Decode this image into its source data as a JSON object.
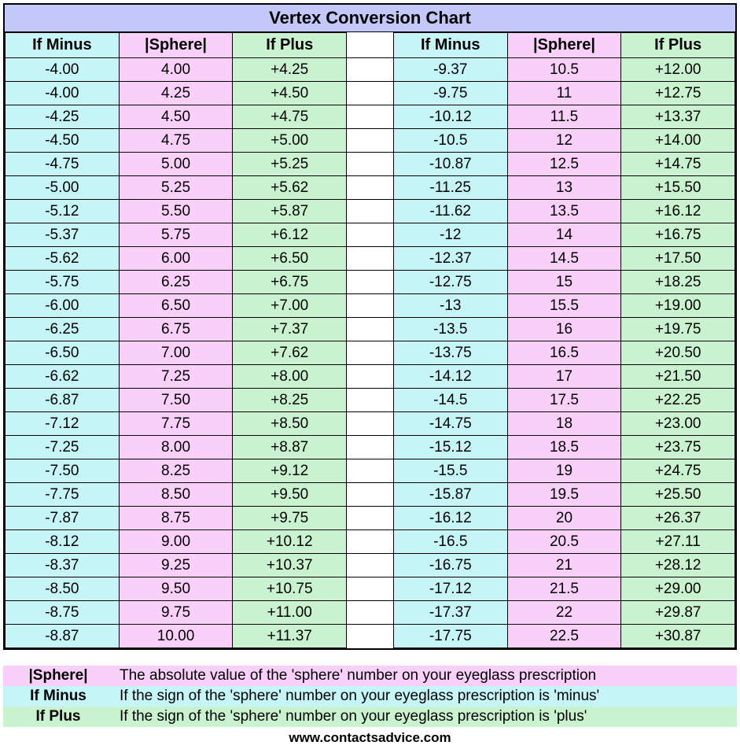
{
  "title": "Vertex Conversion Chart",
  "styling": {
    "title_bg": "#c4c8f8",
    "minus_bg": "#c5f5f7",
    "sphere_bg": "#f9d0f9",
    "plus_bg": "#c9f2cf",
    "border_color": "#000000",
    "font_family": "Arial",
    "title_fontsize": 22,
    "header_fontsize": 20,
    "cell_fontsize": 19,
    "legend_fontsize": 19,
    "url_fontsize": 17
  },
  "columns": {
    "minus": "If Minus",
    "sphere": "|Sphere|",
    "plus": "If Plus"
  },
  "left_rows": [
    {
      "minus": "-4.00",
      "sphere": "4.00",
      "plus": "+4.25"
    },
    {
      "minus": "-4.00",
      "sphere": "4.25",
      "plus": "+4.50"
    },
    {
      "minus": "-4.25",
      "sphere": "4.50",
      "plus": "+4.75"
    },
    {
      "minus": "-4.50",
      "sphere": "4.75",
      "plus": "+5.00"
    },
    {
      "minus": "-4.75",
      "sphere": "5.00",
      "plus": "+5.25"
    },
    {
      "minus": "-5.00",
      "sphere": "5.25",
      "plus": "+5.62"
    },
    {
      "minus": "-5.12",
      "sphere": "5.50",
      "plus": "+5.87"
    },
    {
      "minus": "-5.37",
      "sphere": "5.75",
      "plus": "+6.12"
    },
    {
      "minus": "-5.62",
      "sphere": "6.00",
      "plus": "+6.50"
    },
    {
      "minus": "-5.75",
      "sphere": "6.25",
      "plus": "+6.75"
    },
    {
      "minus": "-6.00",
      "sphere": "6.50",
      "plus": "+7.00"
    },
    {
      "minus": "-6.25",
      "sphere": "6.75",
      "plus": "+7.37"
    },
    {
      "minus": "-6.50",
      "sphere": "7.00",
      "plus": "+7.62"
    },
    {
      "minus": "-6.62",
      "sphere": "7.25",
      "plus": "+8.00"
    },
    {
      "minus": "-6.87",
      "sphere": "7.50",
      "plus": "+8.25"
    },
    {
      "minus": "-7.12",
      "sphere": "7.75",
      "plus": "+8.50"
    },
    {
      "minus": "-7.25",
      "sphere": "8.00",
      "plus": "+8.87"
    },
    {
      "minus": "-7.50",
      "sphere": "8.25",
      "plus": "+9.12"
    },
    {
      "minus": "-7.75",
      "sphere": "8.50",
      "plus": "+9.50"
    },
    {
      "minus": "-7.87",
      "sphere": "8.75",
      "plus": "+9.75"
    },
    {
      "minus": "-8.12",
      "sphere": "9.00",
      "plus": "+10.12"
    },
    {
      "minus": "-8.37",
      "sphere": "9.25",
      "plus": "+10.37"
    },
    {
      "minus": "-8.50",
      "sphere": "9.50",
      "plus": "+10.75"
    },
    {
      "minus": "-8.75",
      "sphere": "9.75",
      "plus": "+11.00"
    },
    {
      "minus": "-8.87",
      "sphere": "10.00",
      "plus": "+11.37"
    }
  ],
  "right_rows": [
    {
      "minus": "-9.37",
      "sphere": "10.5",
      "plus": "+12.00"
    },
    {
      "minus": "-9.75",
      "sphere": "11",
      "plus": "+12.75"
    },
    {
      "minus": "-10.12",
      "sphere": "11.5",
      "plus": "+13.37"
    },
    {
      "minus": "-10.5",
      "sphere": "12",
      "plus": "+14.00"
    },
    {
      "minus": "-10.87",
      "sphere": "12.5",
      "plus": "+14.75"
    },
    {
      "minus": "-11.25",
      "sphere": "13",
      "plus": "+15.50"
    },
    {
      "minus": "-11.62",
      "sphere": "13.5",
      "plus": "+16.12"
    },
    {
      "minus": "-12",
      "sphere": "14",
      "plus": "+16.75"
    },
    {
      "minus": "-12.37",
      "sphere": "14.5",
      "plus": "+17.50"
    },
    {
      "minus": "-12.75",
      "sphere": "15",
      "plus": "+18.25"
    },
    {
      "minus": "-13",
      "sphere": "15.5",
      "plus": "+19.00"
    },
    {
      "minus": "-13.5",
      "sphere": "16",
      "plus": "+19.75"
    },
    {
      "minus": "-13.75",
      "sphere": "16.5",
      "plus": "+20.50"
    },
    {
      "minus": "-14.12",
      "sphere": "17",
      "plus": "+21.50"
    },
    {
      "minus": "-14.5",
      "sphere": "17.5",
      "plus": "+22.25"
    },
    {
      "minus": "-14.75",
      "sphere": "18",
      "plus": "+23.00"
    },
    {
      "minus": "-15.12",
      "sphere": "18.5",
      "plus": "+23.75"
    },
    {
      "minus": "-15.5",
      "sphere": "19",
      "plus": "+24.75"
    },
    {
      "minus": "-15.87",
      "sphere": "19.5",
      "plus": "+25.50"
    },
    {
      "minus": "-16.12",
      "sphere": "20",
      "plus": "+26.37"
    },
    {
      "minus": "-16.5",
      "sphere": "20.5",
      "plus": "+27.11"
    },
    {
      "minus": "-16.75",
      "sphere": "21",
      "plus": "+28.12"
    },
    {
      "minus": "-17.12",
      "sphere": "21.5",
      "plus": "+29.00"
    },
    {
      "minus": "-17.37",
      "sphere": "22",
      "plus": "+29.87"
    },
    {
      "minus": "-17.75",
      "sphere": "22.5",
      "plus": "+30.87"
    }
  ],
  "legend": [
    {
      "key": "|Sphere|",
      "bg": "#f9d0f9",
      "desc": "The absolute value of the 'sphere' number on your eyeglass prescription"
    },
    {
      "key": "If Minus",
      "bg": "#c5f5f7",
      "desc": "If the sign of the 'sphere' number on your eyeglass prescription is 'minus'"
    },
    {
      "key": "If Plus",
      "bg": "#c9f2cf",
      "desc": "If the sign of the 'sphere' number on your eyeglass prescription is 'plus'"
    }
  ],
  "url": "www.contactsadvice.com"
}
